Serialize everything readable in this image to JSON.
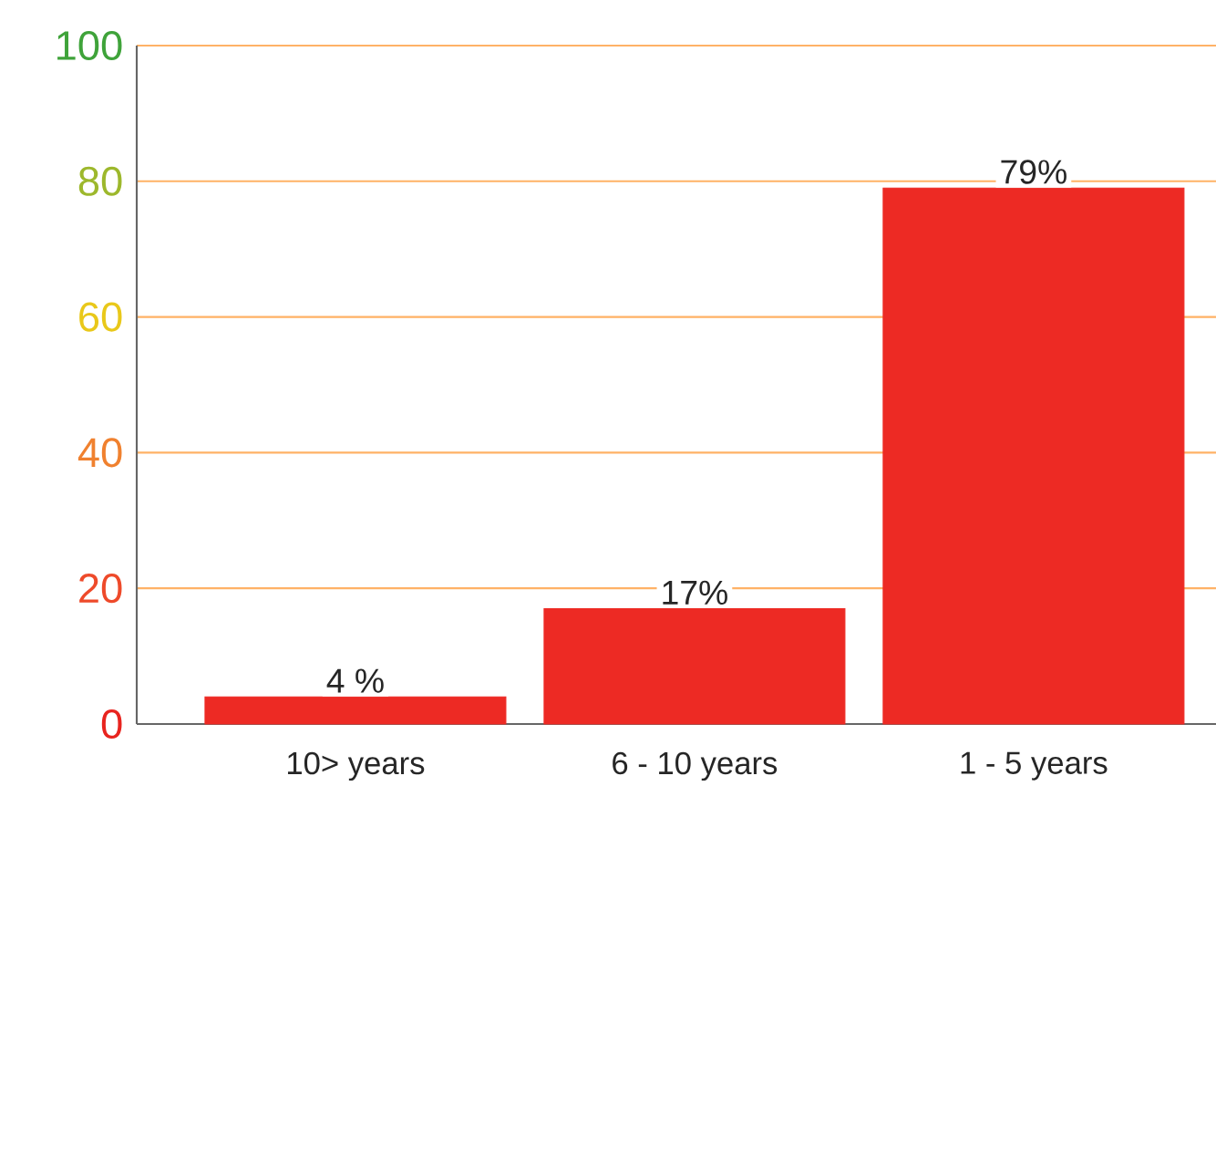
{
  "chart_data": {
    "type": "bar",
    "categories": [
      "10> years",
      "6 - 10 years",
      "1 - 5 years"
    ],
    "values": [
      4,
      17,
      79
    ],
    "value_labels": [
      "4 %",
      "17%",
      "79%"
    ],
    "color": "#ed2a24",
    "ylim": [
      0,
      100
    ],
    "yticks": [
      0,
      20,
      40,
      60,
      80,
      100
    ],
    "grid": "y"
  }
}
